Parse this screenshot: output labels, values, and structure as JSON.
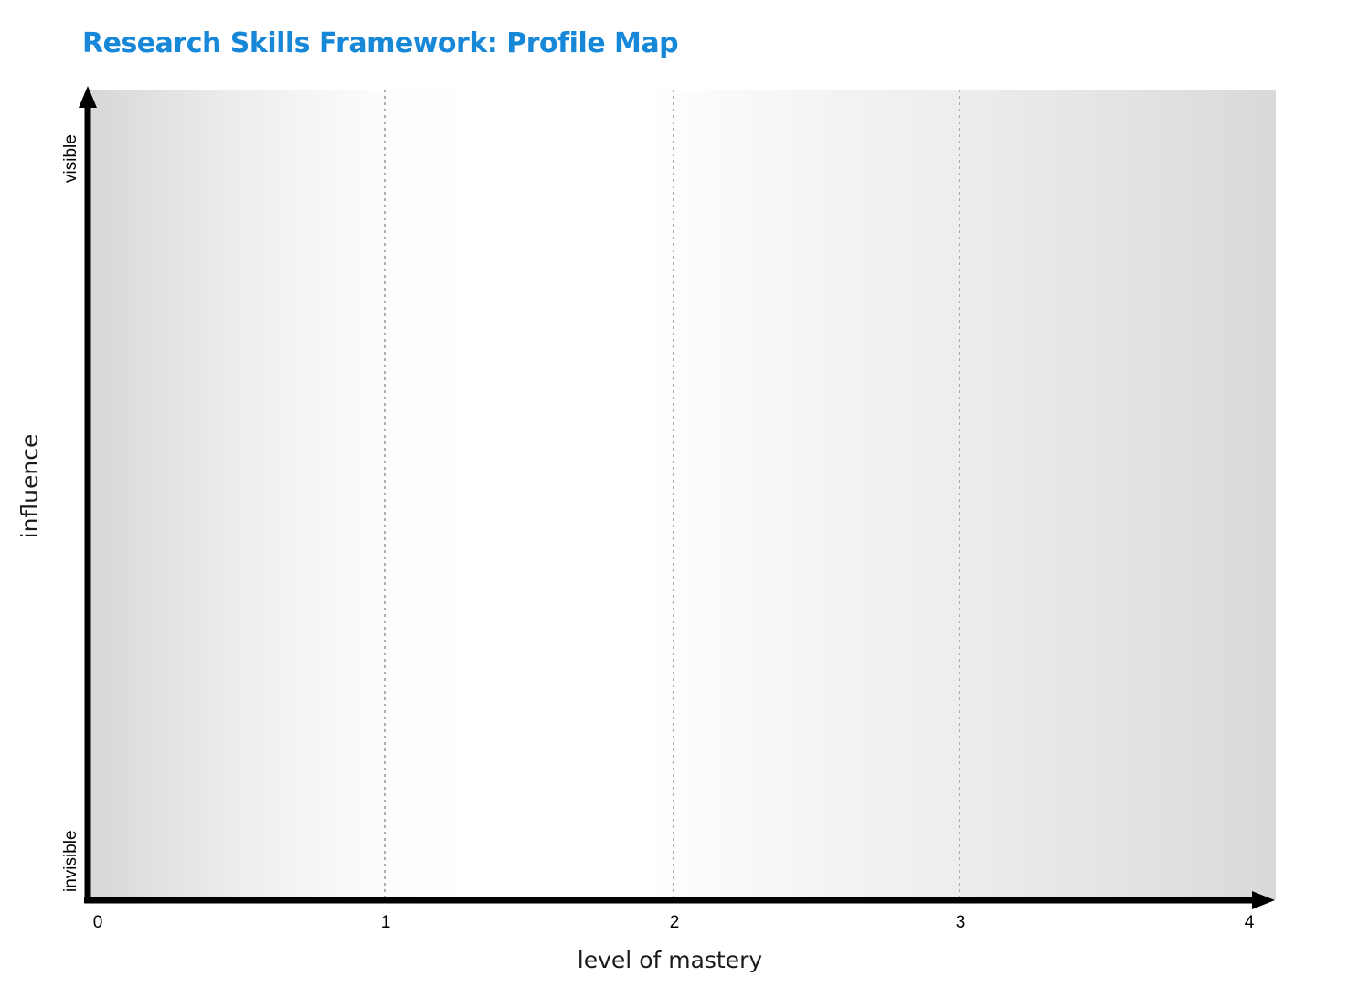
{
  "header": {
    "title": "Research Skills Framework: Profile Map"
  },
  "chart_data": {
    "type": "scatter",
    "title": "Research Skills Framework: Profile Map",
    "xlabel": "level of mastery",
    "ylabel": "influence",
    "x_ticks": [
      "0",
      "1",
      "2",
      "3",
      "4"
    ],
    "xlim": [
      0,
      4
    ],
    "y_low_label": "invisible",
    "y_high_label": "visible",
    "grid": "vertical dotted lines at x = 1, 2, 3",
    "background": "grey gradient bands, darker at both ends of the x axis",
    "points": []
  }
}
